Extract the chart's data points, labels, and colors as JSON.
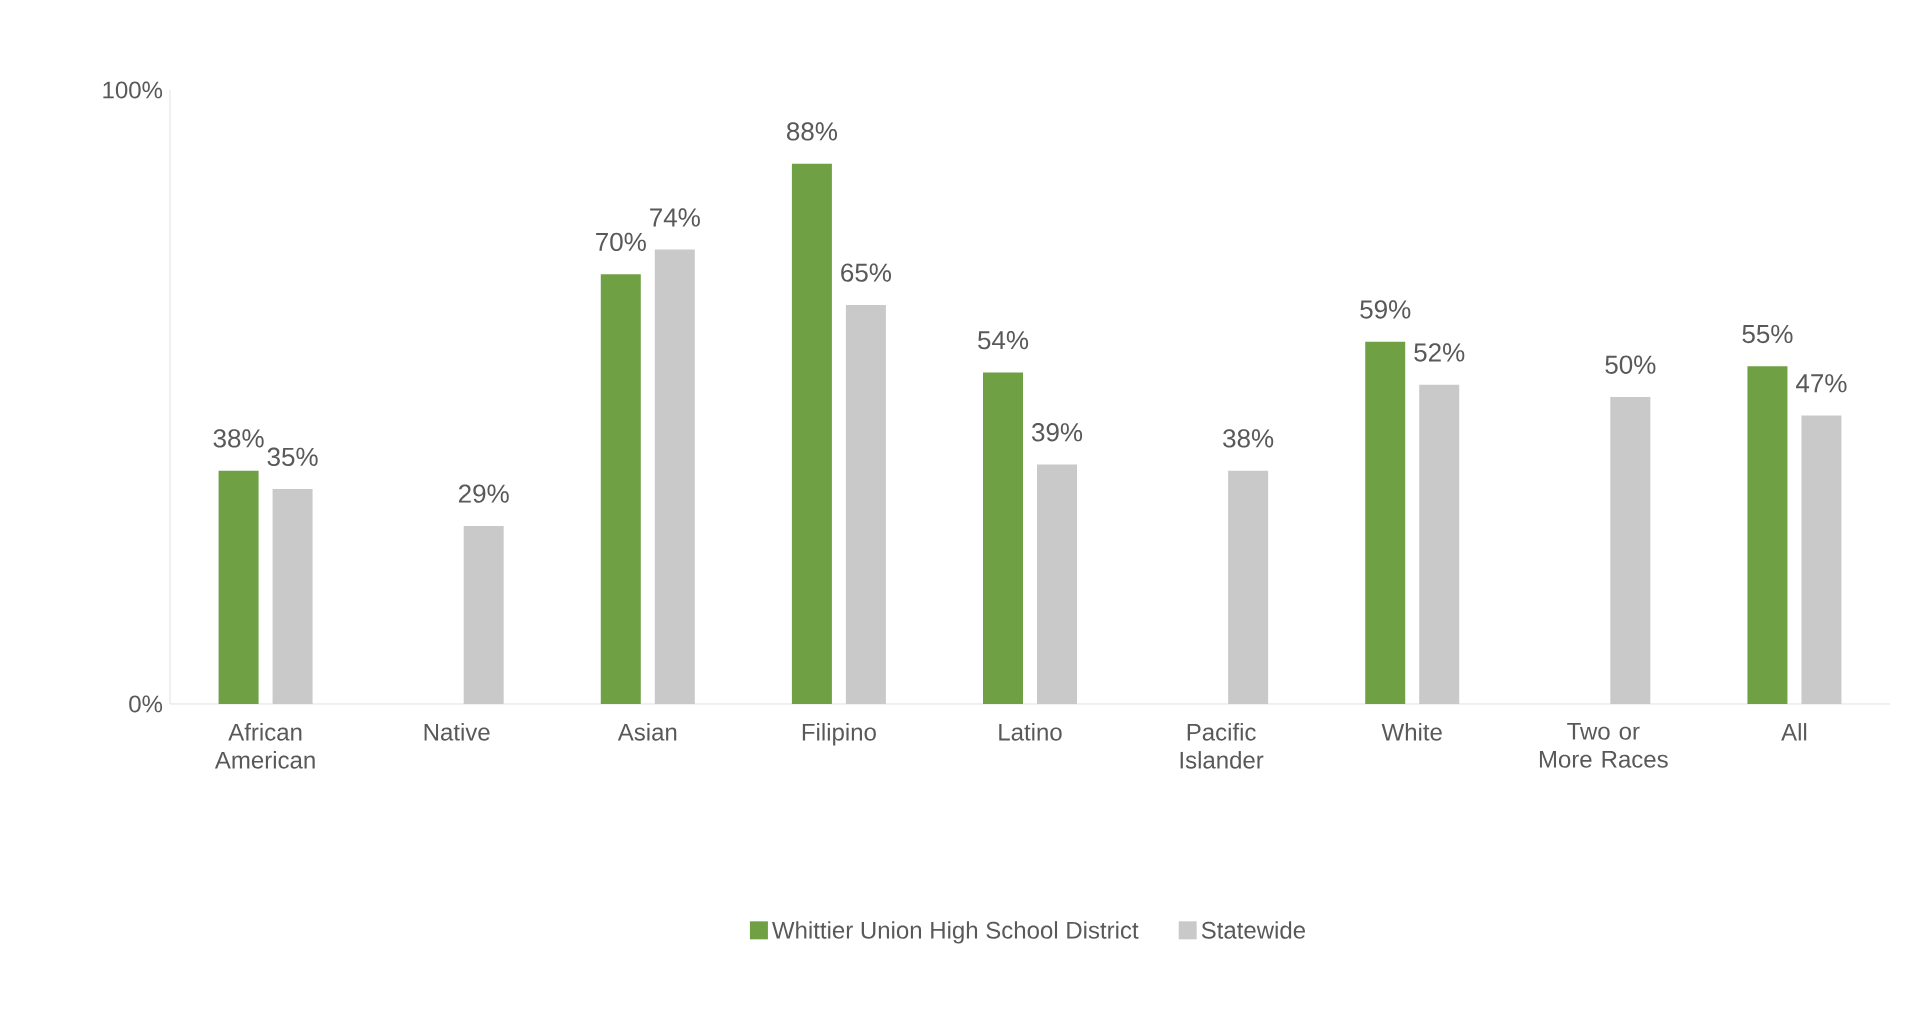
{
  "chart_data": {
    "type": "bar",
    "categories": [
      "African American",
      "Native",
      "Asian",
      "Filipino",
      "Latino",
      "Pacific Islander",
      "White",
      "Two or More Races",
      "All"
    ],
    "series": [
      {
        "name": "Whittier Union High School District",
        "color": "#6fa044",
        "values": [
          38,
          null,
          70,
          88,
          54,
          null,
          59,
          null,
          55
        ],
        "value_labels": [
          "38%",
          null,
          "70%",
          "88%",
          "54%",
          null,
          "59%",
          null,
          "55%"
        ]
      },
      {
        "name": "Statewide",
        "color": "#c9c9c9",
        "values": [
          35,
          29,
          74,
          65,
          39,
          38,
          52,
          50,
          47
        ],
        "value_labels": [
          "35%",
          "29%",
          "74%",
          "65%",
          "39%",
          "38%",
          "52%",
          "50%",
          "47%"
        ]
      }
    ],
    "ylim": [
      0,
      100
    ],
    "yticks": [
      {
        "value": 0,
        "label": "0%"
      },
      {
        "value": 100,
        "label": "100%"
      }
    ],
    "grid": false,
    "legend": "bottom"
  }
}
